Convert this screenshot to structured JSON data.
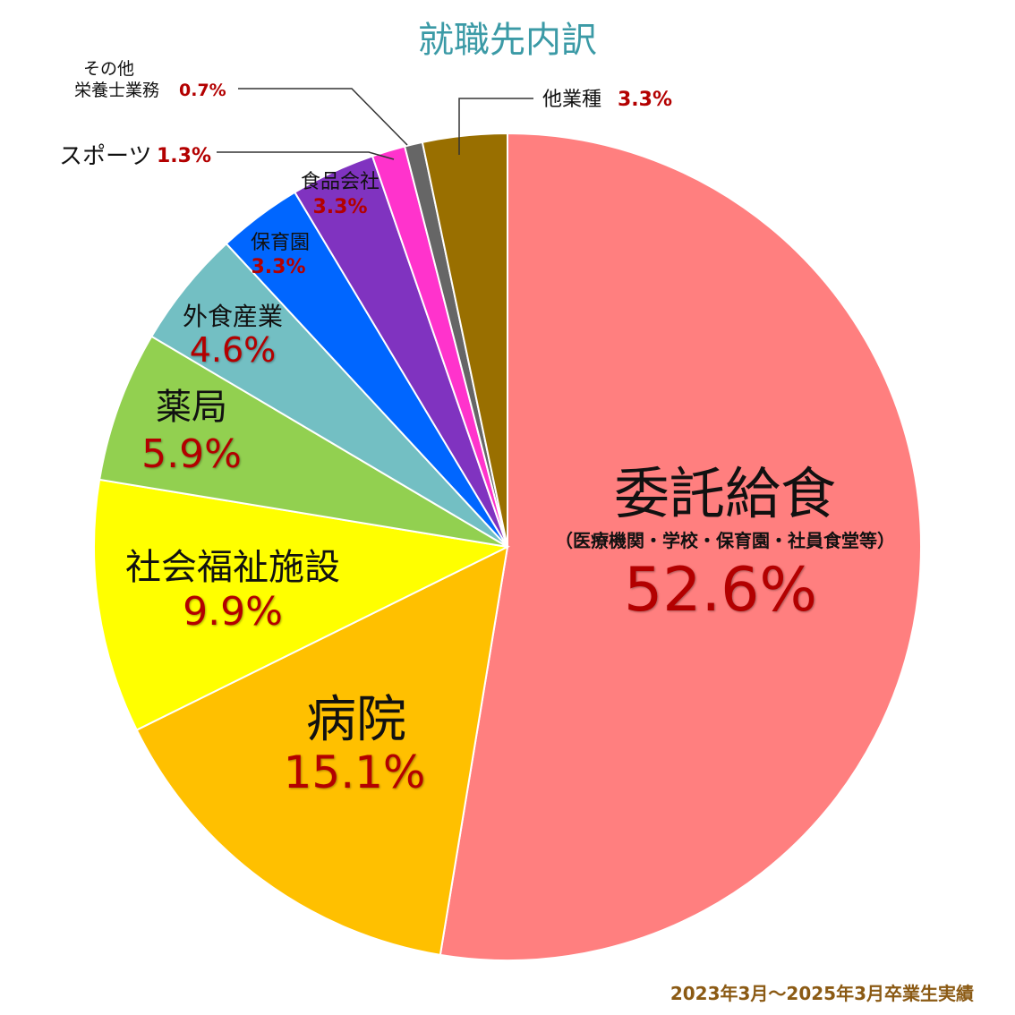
{
  "title": "就職先内訳",
  "footnote": "2023年3月～2025年3月卒業生実績",
  "chart_data": {
    "type": "pie",
    "title": "就職先内訳",
    "start": "12 o'clock, clockwise",
    "slices": [
      {
        "label": "委託給食",
        "sublabel": "（医療機関・学校・保育園・社員食堂等）",
        "value": 52.6,
        "pct_text": "52.6%",
        "color": "#FF7F7F"
      },
      {
        "label": "病院",
        "value": 15.1,
        "pct_text": "15.1%",
        "color": "#FFC000"
      },
      {
        "label": "社会福祉施設",
        "value": 9.9,
        "pct_text": "9.9%",
        "color": "#FFFF00"
      },
      {
        "label": "薬局",
        "value": 5.9,
        "pct_text": "5.9%",
        "color": "#92D050"
      },
      {
        "label": "外食産業",
        "value": 4.6,
        "pct_text": "4.6%",
        "color": "#73BFC3"
      },
      {
        "label": "保育園",
        "value": 3.3,
        "pct_text": "3.3%",
        "color": "#0066FF"
      },
      {
        "label": "食品会社",
        "value": 3.3,
        "pct_text": "3.3%",
        "color": "#8033C0"
      },
      {
        "label": "スポーツ",
        "value": 1.3,
        "pct_text": "1.3%",
        "color": "#FF33CC"
      },
      {
        "label": "その他\n栄養士業務",
        "value": 0.7,
        "pct_text": "0.7%",
        "color": "#666666"
      },
      {
        "label": "他業種",
        "value": 3.3,
        "pct_text": "3.3%",
        "color": "#996F00"
      }
    ]
  }
}
